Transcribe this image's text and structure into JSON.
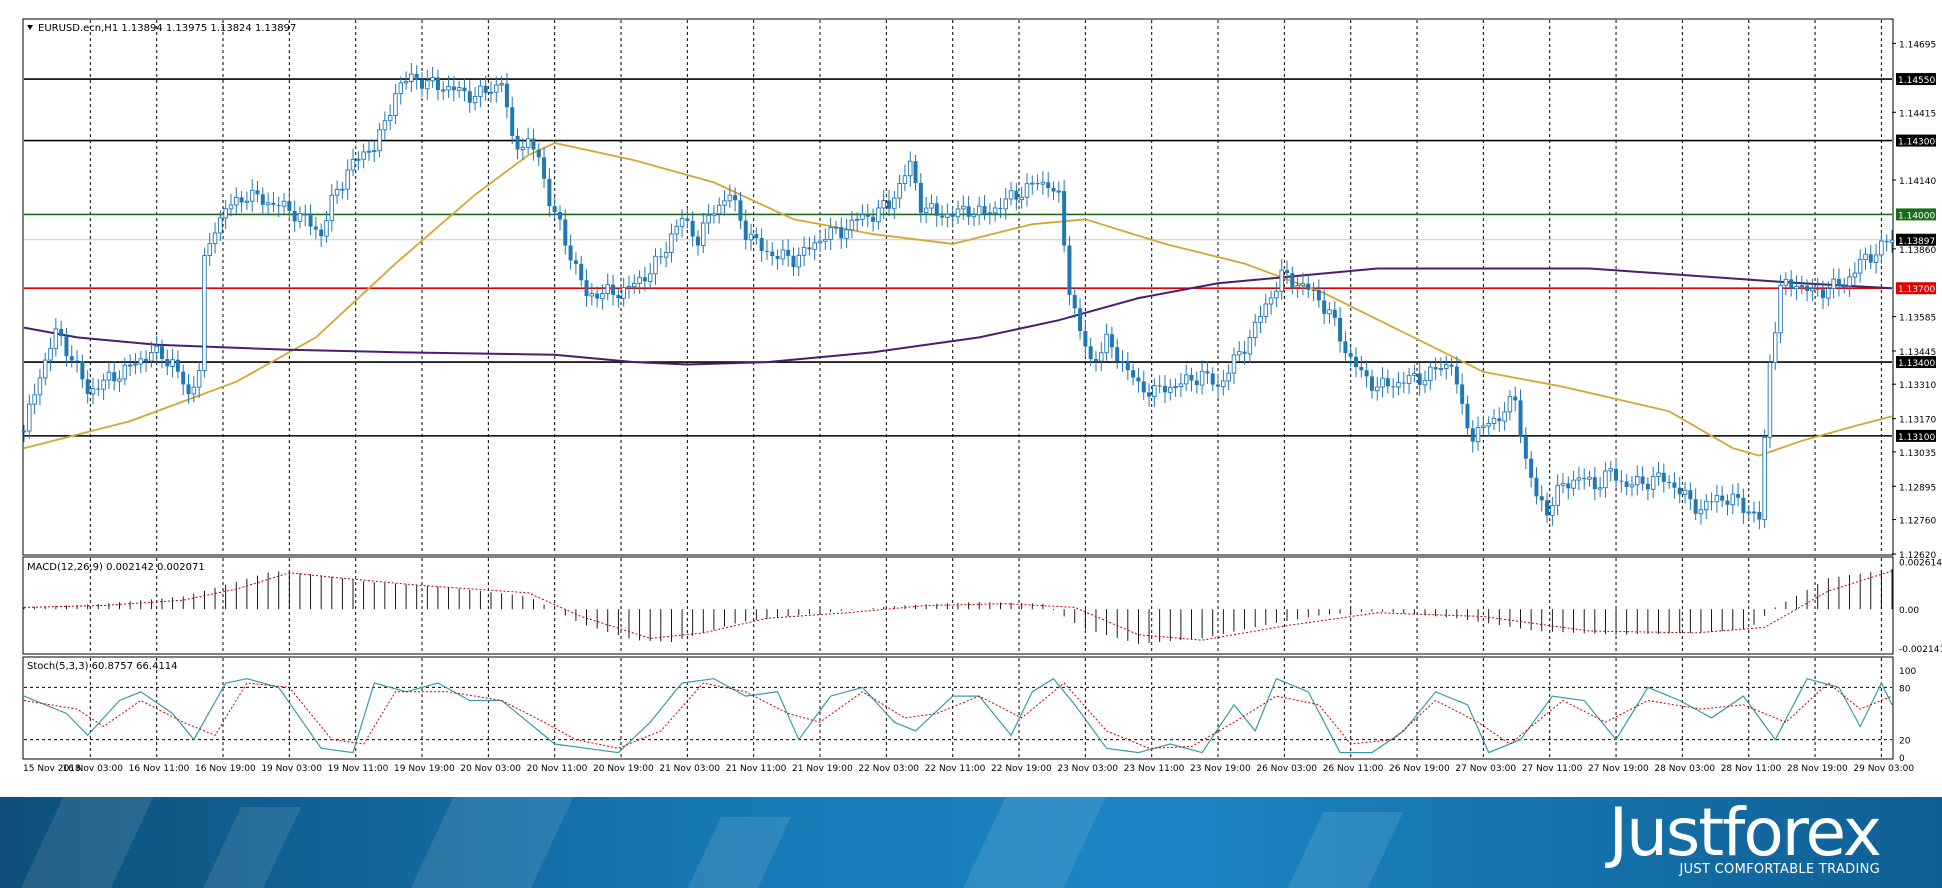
{
  "chart_data": {
    "type": "candlestick",
    "symbol_header": "EURUSD.ecn,H1  1.13894 1.13975 1.13824 1.13897",
    "price_axis_ticks": [
      "1.14695",
      "1.14415",
      "1.14140",
      "1.13860",
      "1.13585",
      "1.13445",
      "1.13310",
      "1.13170",
      "1.13035",
      "1.12895",
      "1.12760",
      "1.12620"
    ],
    "ylim": [
      1.1262,
      1.1479
    ],
    "levels": [
      {
        "label": "1.14550",
        "value": 1.1455,
        "color": "#000000"
      },
      {
        "label": "1.14300",
        "value": 1.143,
        "color": "#000000"
      },
      {
        "label": "1.14000",
        "value": 1.14,
        "color": "#1a6b1a"
      },
      {
        "label": "1.13897",
        "value": 1.13897,
        "color": "#000000"
      },
      {
        "label": "1.13700",
        "value": 1.137,
        "color": "#e00000"
      },
      {
        "label": "1.13400",
        "value": 1.134,
        "color": "#000000"
      },
      {
        "label": "1.13100",
        "value": 1.131,
        "color": "#000000"
      }
    ],
    "time_labels": [
      "15 Nov 2018",
      "16 Nov 03:00",
      "16 Nov 11:00",
      "16 Nov 19:00",
      "19 Nov 03:00",
      "19 Nov 11:00",
      "19 Nov 19:00",
      "20 Nov 03:00",
      "20 Nov 11:00",
      "20 Nov 19:00",
      "21 Nov 03:00",
      "21 Nov 11:00",
      "21 Nov 19:00",
      "22 Nov 03:00",
      "22 Nov 11:00",
      "22 Nov 19:00",
      "23 Nov 03:00",
      "23 Nov 11:00",
      "23 Nov 19:00",
      "26 Nov 03:00",
      "26 Nov 11:00",
      "26 Nov 19:00",
      "27 Nov 03:00",
      "27 Nov 11:00",
      "27 Nov 19:00",
      "28 Nov 03:00",
      "28 Nov 11:00",
      "28 Nov 19:00",
      "29 Nov 03:00"
    ],
    "close_path": [
      [
        0,
        1.1312
      ],
      [
        3,
        1.1335
      ],
      [
        6,
        1.1352
      ],
      [
        9,
        1.1342
      ],
      [
        12,
        1.1328
      ],
      [
        16,
        1.1333
      ],
      [
        20,
        1.1338
      ],
      [
        24,
        1.1344
      ],
      [
        28,
        1.134
      ],
      [
        31,
        1.1326
      ],
      [
        33,
        1.1338
      ],
      [
        34,
        1.138
      ],
      [
        36,
        1.1395
      ],
      [
        38,
        1.1402
      ],
      [
        42,
        1.1408
      ],
      [
        46,
        1.1405
      ],
      [
        50,
        1.1402
      ],
      [
        54,
        1.1396
      ],
      [
        56,
        1.1392
      ],
      [
        58,
        1.1405
      ],
      [
        61,
        1.1418
      ],
      [
        64,
        1.1425
      ],
      [
        66,
        1.1428
      ],
      [
        68,
        1.1436
      ],
      [
        70,
        1.145
      ],
      [
        73,
        1.1456
      ],
      [
        76,
        1.1453
      ],
      [
        79,
        1.1452
      ],
      [
        82,
        1.145
      ],
      [
        85,
        1.1448
      ],
      [
        88,
        1.1451
      ],
      [
        90,
        1.1454
      ],
      [
        92,
        1.143
      ],
      [
        95,
        1.1428
      ],
      [
        97,
        1.1424
      ],
      [
        99,
        1.1405
      ],
      [
        101,
        1.1395
      ],
      [
        104,
        1.1378
      ],
      [
        106,
        1.1367
      ],
      [
        108,
        1.1368
      ],
      [
        111,
        1.1368
      ],
      [
        114,
        1.137
      ],
      [
        117,
        1.1375
      ],
      [
        120,
        1.1382
      ],
      [
        122,
        1.1392
      ],
      [
        124,
        1.1398
      ],
      [
        127,
        1.139
      ],
      [
        130,
        1.1402
      ],
      [
        133,
        1.1408
      ],
      [
        136,
        1.1393
      ],
      [
        139,
        1.1386
      ],
      [
        142,
        1.1383
      ],
      [
        145,
        1.1382
      ],
      [
        148,
        1.1386
      ],
      [
        151,
        1.1392
      ],
      [
        154,
        1.1393
      ],
      [
        157,
        1.1398
      ],
      [
        160,
        1.14
      ],
      [
        163,
        1.1404
      ],
      [
        165,
        1.1412
      ],
      [
        167,
        1.142
      ],
      [
        169,
        1.1404
      ],
      [
        172,
        1.14
      ],
      [
        175,
        1.14
      ],
      [
        178,
        1.1402
      ],
      [
        181,
        1.14
      ],
      [
        184,
        1.1404
      ],
      [
        187,
        1.1408
      ],
      [
        190,
        1.1412
      ],
      [
        193,
        1.1413
      ],
      [
        195,
        1.1406
      ],
      [
        197,
        1.137
      ],
      [
        199,
        1.1352
      ],
      [
        201,
        1.134
      ],
      [
        204,
        1.1348
      ],
      [
        207,
        1.134
      ],
      [
        210,
        1.133
      ],
      [
        213,
        1.1328
      ],
      [
        216,
        1.133
      ],
      [
        219,
        1.1332
      ],
      [
        222,
        1.1335
      ],
      [
        225,
        1.133
      ],
      [
        228,
        1.134
      ],
      [
        231,
        1.135
      ],
      [
        234,
        1.1363
      ],
      [
        237,
        1.1375
      ],
      [
        240,
        1.1372
      ],
      [
        243,
        1.1368
      ],
      [
        246,
        1.136
      ],
      [
        249,
        1.1345
      ],
      [
        252,
        1.1335
      ],
      [
        255,
        1.133
      ],
      [
        258,
        1.1331
      ],
      [
        261,
        1.1333
      ],
      [
        264,
        1.1334
      ],
      [
        267,
        1.1338
      ],
      [
        269,
        1.134
      ],
      [
        271,
        1.132
      ],
      [
        273,
        1.131
      ],
      [
        276,
        1.1315
      ],
      [
        279,
        1.132
      ],
      [
        281,
        1.1325
      ],
      [
        283,
        1.13
      ],
      [
        285,
        1.1285
      ],
      [
        287,
        1.128
      ],
      [
        290,
        1.129
      ],
      [
        293,
        1.1293
      ],
      [
        296,
        1.129
      ],
      [
        299,
        1.1295
      ],
      [
        302,
        1.129
      ],
      [
        305,
        1.1291
      ],
      [
        308,
        1.1293
      ],
      [
        311,
        1.129
      ],
      [
        313,
        1.1285
      ],
      [
        316,
        1.128
      ],
      [
        319,
        1.1285
      ],
      [
        322,
        1.1284
      ],
      [
        325,
        1.128
      ],
      [
        327,
        1.1276
      ],
      [
        329,
        1.134
      ],
      [
        331,
        1.137
      ],
      [
        334,
        1.1372
      ],
      [
        337,
        1.1368
      ],
      [
        340,
        1.137
      ],
      [
        343,
        1.1372
      ],
      [
        346,
        1.138
      ],
      [
        349,
        1.1385
      ],
      [
        352,
        1.139
      ]
    ],
    "ma_yellow": [
      [
        0,
        1.1305
      ],
      [
        20,
        1.1316
      ],
      [
        40,
        1.1332
      ],
      [
        55,
        1.135
      ],
      [
        70,
        1.138
      ],
      [
        85,
        1.1408
      ],
      [
        95,
        1.1424
      ],
      [
        100,
        1.1429
      ],
      [
        115,
        1.1422
      ],
      [
        130,
        1.1413
      ],
      [
        145,
        1.1398
      ],
      [
        160,
        1.1392
      ],
      [
        175,
        1.1388
      ],
      [
        190,
        1.1396
      ],
      [
        200,
        1.1398
      ],
      [
        215,
        1.1388
      ],
      [
        230,
        1.138
      ],
      [
        245,
        1.1368
      ],
      [
        260,
        1.1352
      ],
      [
        275,
        1.1336
      ],
      [
        290,
        1.133
      ],
      [
        310,
        1.132
      ],
      [
        322,
        1.1305
      ],
      [
        327,
        1.1302
      ],
      [
        335,
        1.1308
      ],
      [
        345,
        1.1314
      ],
      [
        352,
        1.1318
      ]
    ],
    "ma_purple": [
      [
        0,
        1.1354
      ],
      [
        10,
        1.135
      ],
      [
        25,
        1.1347
      ],
      [
        50,
        1.1345
      ],
      [
        70,
        1.1344
      ],
      [
        100,
        1.1343
      ],
      [
        115,
        1.134
      ],
      [
        125,
        1.1339
      ],
      [
        140,
        1.134
      ],
      [
        160,
        1.1344
      ],
      [
        180,
        1.135
      ],
      [
        195,
        1.1357
      ],
      [
        210,
        1.1366
      ],
      [
        225,
        1.1372
      ],
      [
        240,
        1.1375
      ],
      [
        255,
        1.1378
      ],
      [
        275,
        1.1378
      ],
      [
        295,
        1.1378
      ],
      [
        315,
        1.1375
      ],
      [
        335,
        1.1372
      ],
      [
        352,
        1.137
      ]
    ],
    "macd": {
      "label": "MACD(12,26,9) 0.002142 0.002071",
      "ticks": [
        "0.002614",
        "0.00",
        "-0.002141"
      ],
      "ylim": [
        -0.00235,
        0.0027
      ],
      "hist": [
        [
          0,
          0.0001
        ],
        [
          15,
          0.0003
        ],
        [
          30,
          0.0007
        ],
        [
          40,
          0.0015
        ],
        [
          47,
          0.0021
        ],
        [
          55,
          0.0019
        ],
        [
          65,
          0.0015
        ],
        [
          80,
          0.0012
        ],
        [
          95,
          0.0007
        ],
        [
          105,
          -0.0008
        ],
        [
          115,
          -0.0017
        ],
        [
          122,
          -0.0018
        ],
        [
          135,
          -0.0007
        ],
        [
          150,
          -0.0002
        ],
        [
          165,
          0.0002
        ],
        [
          180,
          0.0004
        ],
        [
          192,
          0.0003
        ],
        [
          200,
          -0.0011
        ],
        [
          210,
          -0.0019
        ],
        [
          222,
          -0.0016
        ],
        [
          235,
          -0.0008
        ],
        [
          245,
          -0.0003
        ],
        [
          255,
          -0.0001
        ],
        [
          270,
          -0.0005
        ],
        [
          285,
          -0.0012
        ],
        [
          300,
          -0.0014
        ],
        [
          315,
          -0.0013
        ],
        [
          325,
          -0.0011
        ],
        [
          330,
          0.0001
        ],
        [
          340,
          0.0017
        ],
        [
          352,
          0.0022
        ]
      ],
      "signal": [
        [
          0,
          0.0001
        ],
        [
          15,
          0.0002
        ],
        [
          30,
          0.0005
        ],
        [
          40,
          0.0011
        ],
        [
          50,
          0.002
        ],
        [
          60,
          0.0017
        ],
        [
          75,
          0.0013
        ],
        [
          95,
          0.0009
        ],
        [
          105,
          -0.0004
        ],
        [
          118,
          -0.0016
        ],
        [
          128,
          -0.0013
        ],
        [
          140,
          -0.0005
        ],
        [
          155,
          -0.0002
        ],
        [
          170,
          0.0002
        ],
        [
          185,
          0.0003
        ],
        [
          198,
          0.0001
        ],
        [
          210,
          -0.0014
        ],
        [
          222,
          -0.0017
        ],
        [
          238,
          -0.0009
        ],
        [
          255,
          -0.0002
        ],
        [
          275,
          -0.0004
        ],
        [
          295,
          -0.0012
        ],
        [
          315,
          -0.0013
        ],
        [
          328,
          -0.001
        ],
        [
          340,
          0.001
        ],
        [
          352,
          0.0021
        ]
      ]
    },
    "stoch": {
      "label": "Stoch(5,3,3) 60.8757 66.4114",
      "ticks": [
        "100",
        "80",
        "20",
        "0"
      ],
      "ylim": [
        0,
        100
      ],
      "k": [
        [
          0,
          70
        ],
        [
          8,
          50
        ],
        [
          12,
          25
        ],
        [
          18,
          65
        ],
        [
          22,
          75
        ],
        [
          28,
          50
        ],
        [
          32,
          20
        ],
        [
          38,
          85
        ],
        [
          42,
          90
        ],
        [
          48,
          80
        ],
        [
          56,
          10
        ],
        [
          62,
          5
        ],
        [
          66,
          85
        ],
        [
          72,
          75
        ],
        [
          78,
          85
        ],
        [
          84,
          65
        ],
        [
          90,
          65
        ],
        [
          96,
          35
        ],
        [
          100,
          15
        ],
        [
          106,
          10
        ],
        [
          112,
          5
        ],
        [
          118,
          40
        ],
        [
          124,
          85
        ],
        [
          130,
          90
        ],
        [
          136,
          70
        ],
        [
          142,
          75
        ],
        [
          146,
          20
        ],
        [
          152,
          70
        ],
        [
          158,
          80
        ],
        [
          164,
          40
        ],
        [
          168,
          30
        ],
        [
          175,
          70
        ],
        [
          180,
          70
        ],
        [
          186,
          25
        ],
        [
          190,
          75
        ],
        [
          194,
          90
        ],
        [
          198,
          60
        ],
        [
          204,
          10
        ],
        [
          210,
          5
        ],
        [
          216,
          15
        ],
        [
          222,
          5
        ],
        [
          228,
          60
        ],
        [
          232,
          30
        ],
        [
          236,
          90
        ],
        [
          242,
          75
        ],
        [
          248,
          5
        ],
        [
          254,
          5
        ],
        [
          260,
          30
        ],
        [
          266,
          75
        ],
        [
          272,
          60
        ],
        [
          276,
          5
        ],
        [
          282,
          20
        ],
        [
          288,
          70
        ],
        [
          294,
          65
        ],
        [
          300,
          20
        ],
        [
          306,
          80
        ],
        [
          312,
          65
        ],
        [
          318,
          45
        ],
        [
          324,
          70
        ],
        [
          330,
          20
        ],
        [
          336,
          90
        ],
        [
          342,
          80
        ],
        [
          346,
          35
        ],
        [
          350,
          85
        ],
        [
          352,
          60
        ]
      ],
      "d": [
        [
          0,
          65
        ],
        [
          10,
          55
        ],
        [
          15,
          35
        ],
        [
          22,
          65
        ],
        [
          30,
          40
        ],
        [
          36,
          25
        ],
        [
          42,
          85
        ],
        [
          50,
          80
        ],
        [
          58,
          20
        ],
        [
          64,
          15
        ],
        [
          70,
          75
        ],
        [
          80,
          75
        ],
        [
          90,
          65
        ],
        [
          98,
          40
        ],
        [
          104,
          20
        ],
        [
          112,
          10
        ],
        [
          120,
          30
        ],
        [
          128,
          85
        ],
        [
          136,
          75
        ],
        [
          144,
          50
        ],
        [
          150,
          40
        ],
        [
          158,
          75
        ],
        [
          166,
          45
        ],
        [
          172,
          50
        ],
        [
          180,
          70
        ],
        [
          188,
          45
        ],
        [
          196,
          85
        ],
        [
          204,
          30
        ],
        [
          212,
          10
        ],
        [
          220,
          12
        ],
        [
          228,
          40
        ],
        [
          236,
          70
        ],
        [
          244,
          60
        ],
        [
          250,
          15
        ],
        [
          258,
          20
        ],
        [
          266,
          65
        ],
        [
          274,
          40
        ],
        [
          280,
          15
        ],
        [
          290,
          65
        ],
        [
          298,
          40
        ],
        [
          306,
          65
        ],
        [
          316,
          55
        ],
        [
          324,
          60
        ],
        [
          332,
          40
        ],
        [
          340,
          85
        ],
        [
          346,
          55
        ],
        [
          352,
          70
        ]
      ]
    }
  },
  "footer": {
    "brand": "Justforex",
    "tagline": "JUST COMFORTABLE TRADING"
  }
}
